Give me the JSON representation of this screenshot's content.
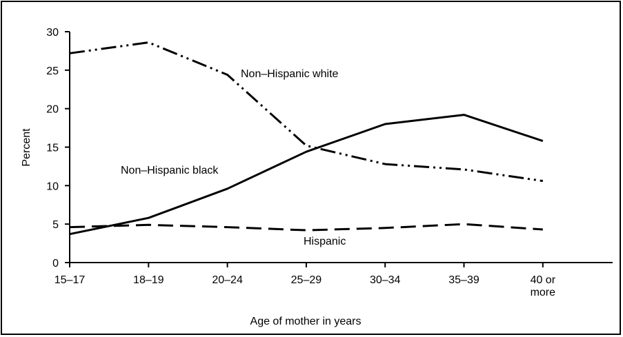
{
  "chart_data": {
    "type": "line",
    "xlabel": "Age of mother in years",
    "ylabel": "Percent",
    "categories": [
      "15–17",
      "18–19",
      "20–24",
      "25–29",
      "30–34",
      "35–39",
      "40 or more"
    ],
    "category_lines": [
      [
        "15–17"
      ],
      [
        "18–19"
      ],
      [
        "20–24"
      ],
      [
        "25–29"
      ],
      [
        "30–34"
      ],
      [
        "35–39"
      ],
      [
        "40 or",
        "more"
      ]
    ],
    "ylim": [
      0,
      30
    ],
    "yticks": [
      0,
      5,
      10,
      15,
      20,
      25,
      30
    ],
    "grid": false,
    "series": [
      {
        "name": "Non–Hispanic white",
        "values": [
          27.2,
          28.6,
          24.4,
          15.2,
          12.8,
          12.1,
          10.6
        ],
        "color": "#000000",
        "dash": "dash-dot-dot"
      },
      {
        "name": "Non–Hispanic black",
        "values": [
          3.7,
          5.8,
          9.6,
          14.4,
          18.0,
          19.2,
          15.8
        ],
        "color": "#000000",
        "dash": "solid"
      },
      {
        "name": "Hispanic",
        "values": [
          4.6,
          4.9,
          4.6,
          4.2,
          4.5,
          5.0,
          4.3
        ],
        "color": "#000000",
        "dash": "dashed"
      }
    ]
  }
}
